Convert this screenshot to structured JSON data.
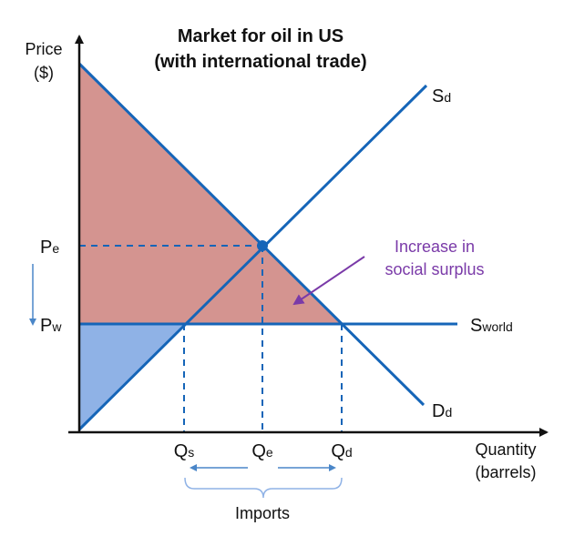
{
  "title": {
    "line1": "Market for oil in US",
    "line2": "(with international trade)"
  },
  "axes": {
    "y_label_line1": "Price",
    "y_label_line2": "($)",
    "x_label_line1": "Quantity",
    "x_label_line2": "(barrels)"
  },
  "price_labels": {
    "pe_main": "P",
    "pe_sub": "e",
    "pw_main": "P",
    "pw_sub": "w"
  },
  "quantity_labels": {
    "qs_main": "Q",
    "qs_sub": "s",
    "qe_main": "Q",
    "qe_sub": "e",
    "qd_main": "Q",
    "qd_sub": "d"
  },
  "curve_labels": {
    "supply_main": "S",
    "supply_sub": "d",
    "demand_main": "D",
    "demand_sub": "d",
    "world_main": "S",
    "world_sub": "world"
  },
  "annotation": {
    "line1": "Increase in",
    "line2": "social surplus"
  },
  "imports_label": "Imports",
  "colors": {
    "curve": "#1565b8",
    "consumer_surplus": "#d49490",
    "producer_surplus": "#8fb2e6",
    "annotation": "#7a3aa8",
    "axis": "#111111"
  }
}
